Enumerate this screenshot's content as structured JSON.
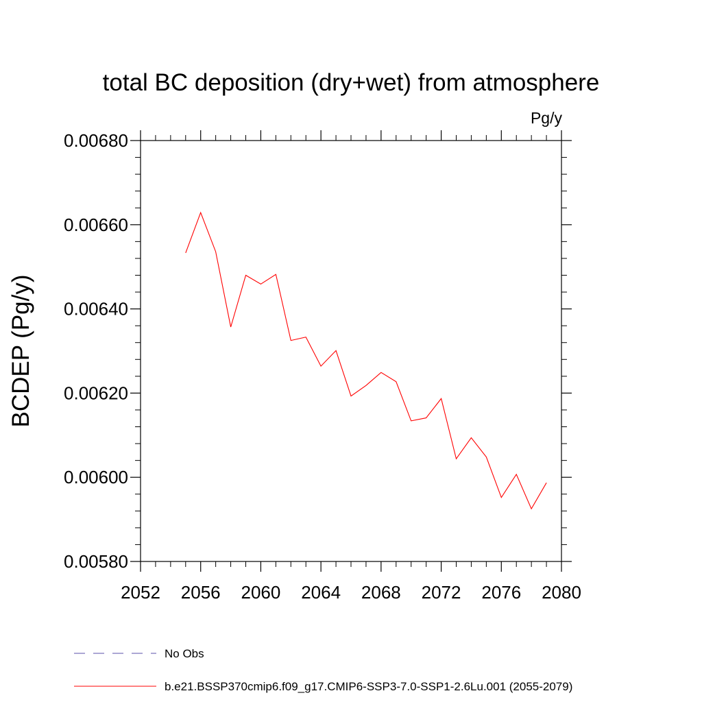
{
  "chart_data": {
    "type": "line",
    "title": "total BC deposition (dry+wet) from atmosphere",
    "units_label": "Pg/y",
    "ylabel": "BCDEP  (Pg/y)",
    "xlabel": "",
    "xlim": [
      2052,
      2080
    ],
    "ylim": [
      0.0058,
      0.0068
    ],
    "x_ticks": [
      2052,
      2056,
      2060,
      2064,
      2068,
      2072,
      2076,
      2080
    ],
    "x_tick_labels": [
      "2052",
      "2056",
      "2060",
      "2064",
      "2068",
      "2072",
      "2076",
      "2080"
    ],
    "y_ticks": [
      0.0058,
      0.006,
      0.0062,
      0.0064,
      0.0066,
      0.0068
    ],
    "y_tick_labels": [
      "0.00580",
      "0.00600",
      "0.00620",
      "0.00640",
      "0.00660",
      "0.00680"
    ],
    "grid": false,
    "series": [
      {
        "name": "b.e21.BSSP370cmip6.f09_g17.CMIP6-SSP3-7.0-SSP1-2.6Lu.001 (2055-2079)",
        "color": "#ff0000",
        "style": "solid",
        "x": [
          2055,
          2056,
          2057,
          2058,
          2059,
          2060,
          2061,
          2062,
          2063,
          2064,
          2065,
          2066,
          2067,
          2068,
          2069,
          2070,
          2071,
          2072,
          2073,
          2074,
          2075,
          2076,
          2077,
          2078,
          2079
        ],
        "values": [
          0.006533,
          0.006629,
          0.006536,
          0.006357,
          0.00648,
          0.006459,
          0.006482,
          0.006325,
          0.006333,
          0.006264,
          0.006301,
          0.006193,
          0.006218,
          0.006249,
          0.006227,
          0.006134,
          0.006141,
          0.006187,
          0.006044,
          0.006094,
          0.006048,
          0.005952,
          0.006007,
          0.005925,
          0.005987
        ]
      }
    ],
    "legend": {
      "placement": "bottom",
      "entries": [
        {
          "label": "No Obs",
          "color": "#5a4fa8",
          "style": "dashed"
        },
        {
          "label": "b.e21.BSSP370cmip6.f09_g17.CMIP6-SSP3-7.0-SSP1-2.6Lu.001 (2055-2079)",
          "color": "#ff0000",
          "style": "solid"
        }
      ]
    }
  }
}
